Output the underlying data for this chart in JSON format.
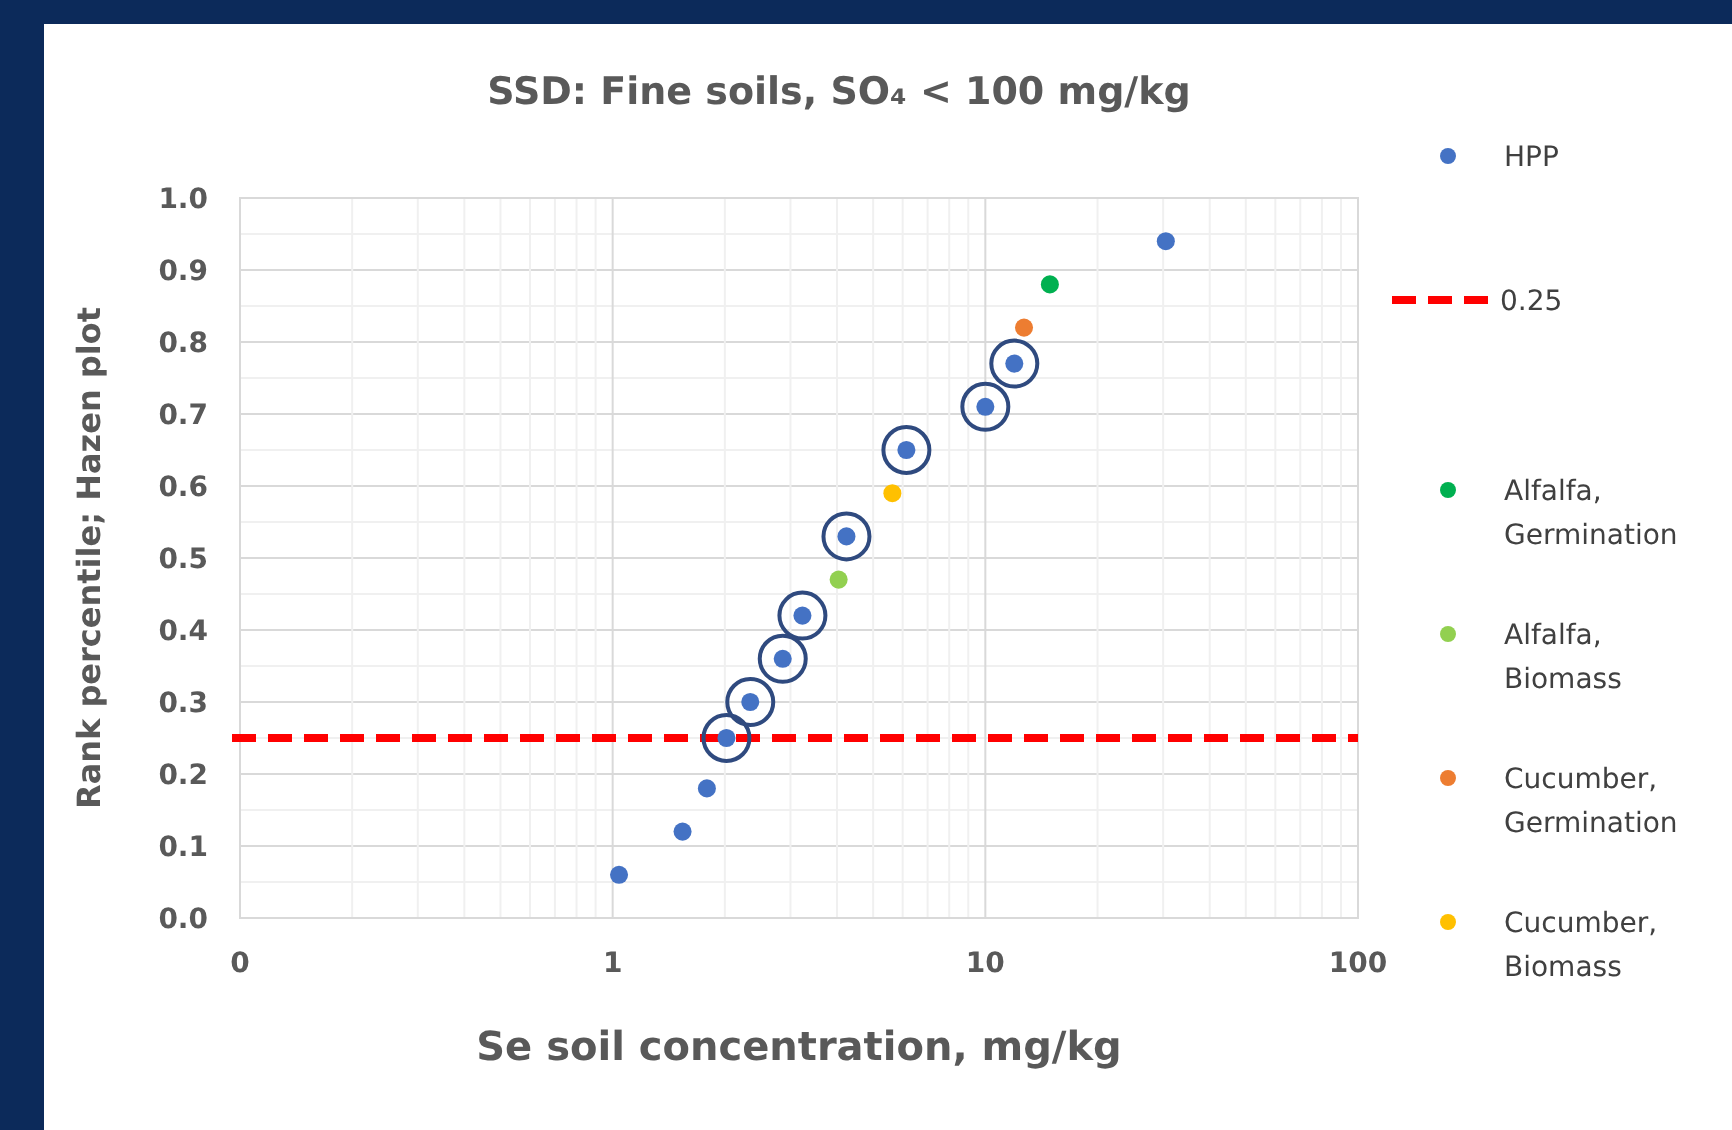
{
  "chart_data": {
    "type": "scatter",
    "title": "SSD: Fine soils, SO₄ < 100 mg/kg",
    "xlabel": "Se soil concentration, mg/kg",
    "ylabel": "Rank percentile; Hazen plot",
    "log": "x",
    "xlim": [
      0.1,
      100
    ],
    "xticks": [
      {
        "value": 0.1,
        "label": "0"
      },
      1,
      10,
      100
    ],
    "ylim": [
      0,
      1
    ],
    "yticks": [
      {
        "value": 0,
        "label": "0.0"
      },
      0.1,
      0.2,
      0.3,
      0.4,
      0.5,
      0.6,
      0.7,
      0.8,
      0.9,
      {
        "value": 1,
        "label": "1.0"
      }
    ],
    "grid": true,
    "legend": "right",
    "marker": "circle",
    "ref_lines": [
      {
        "axis": "y",
        "value": 0.25,
        "label": "0.25",
        "color": "#ff0000",
        "line_style": "dashed"
      }
    ],
    "series": [
      {
        "name": "HPP",
        "color": "#4472c4",
        "x": [
          1.04,
          1.54,
          1.79,
          2.02,
          2.34,
          2.86,
          3.23,
          4.24,
          6.14,
          10.0,
          11.96,
          30.5
        ],
        "values": [
          0.06,
          0.12,
          0.18,
          0.25,
          0.3,
          0.36,
          0.42,
          0.53,
          0.65,
          0.71,
          0.77,
          0.94
        ]
      },
      {
        "name": "Alfalfa, Germination",
        "color": "#00b050",
        "x": [
          14.9
        ],
        "values": [
          0.88
        ]
      },
      {
        "name": "Alfalfa, Biomass",
        "color": "#92d050",
        "x": [
          4.04
        ],
        "values": [
          0.47
        ]
      },
      {
        "name": "Cucumber, Germination",
        "color": "#ed7d31",
        "x": [
          12.7
        ],
        "values": [
          0.82
        ]
      },
      {
        "name": "Cucumber, Biomass",
        "color": "#ffc000",
        "x": [
          5.63
        ],
        "values": [
          0.59
        ]
      }
    ]
  }
}
